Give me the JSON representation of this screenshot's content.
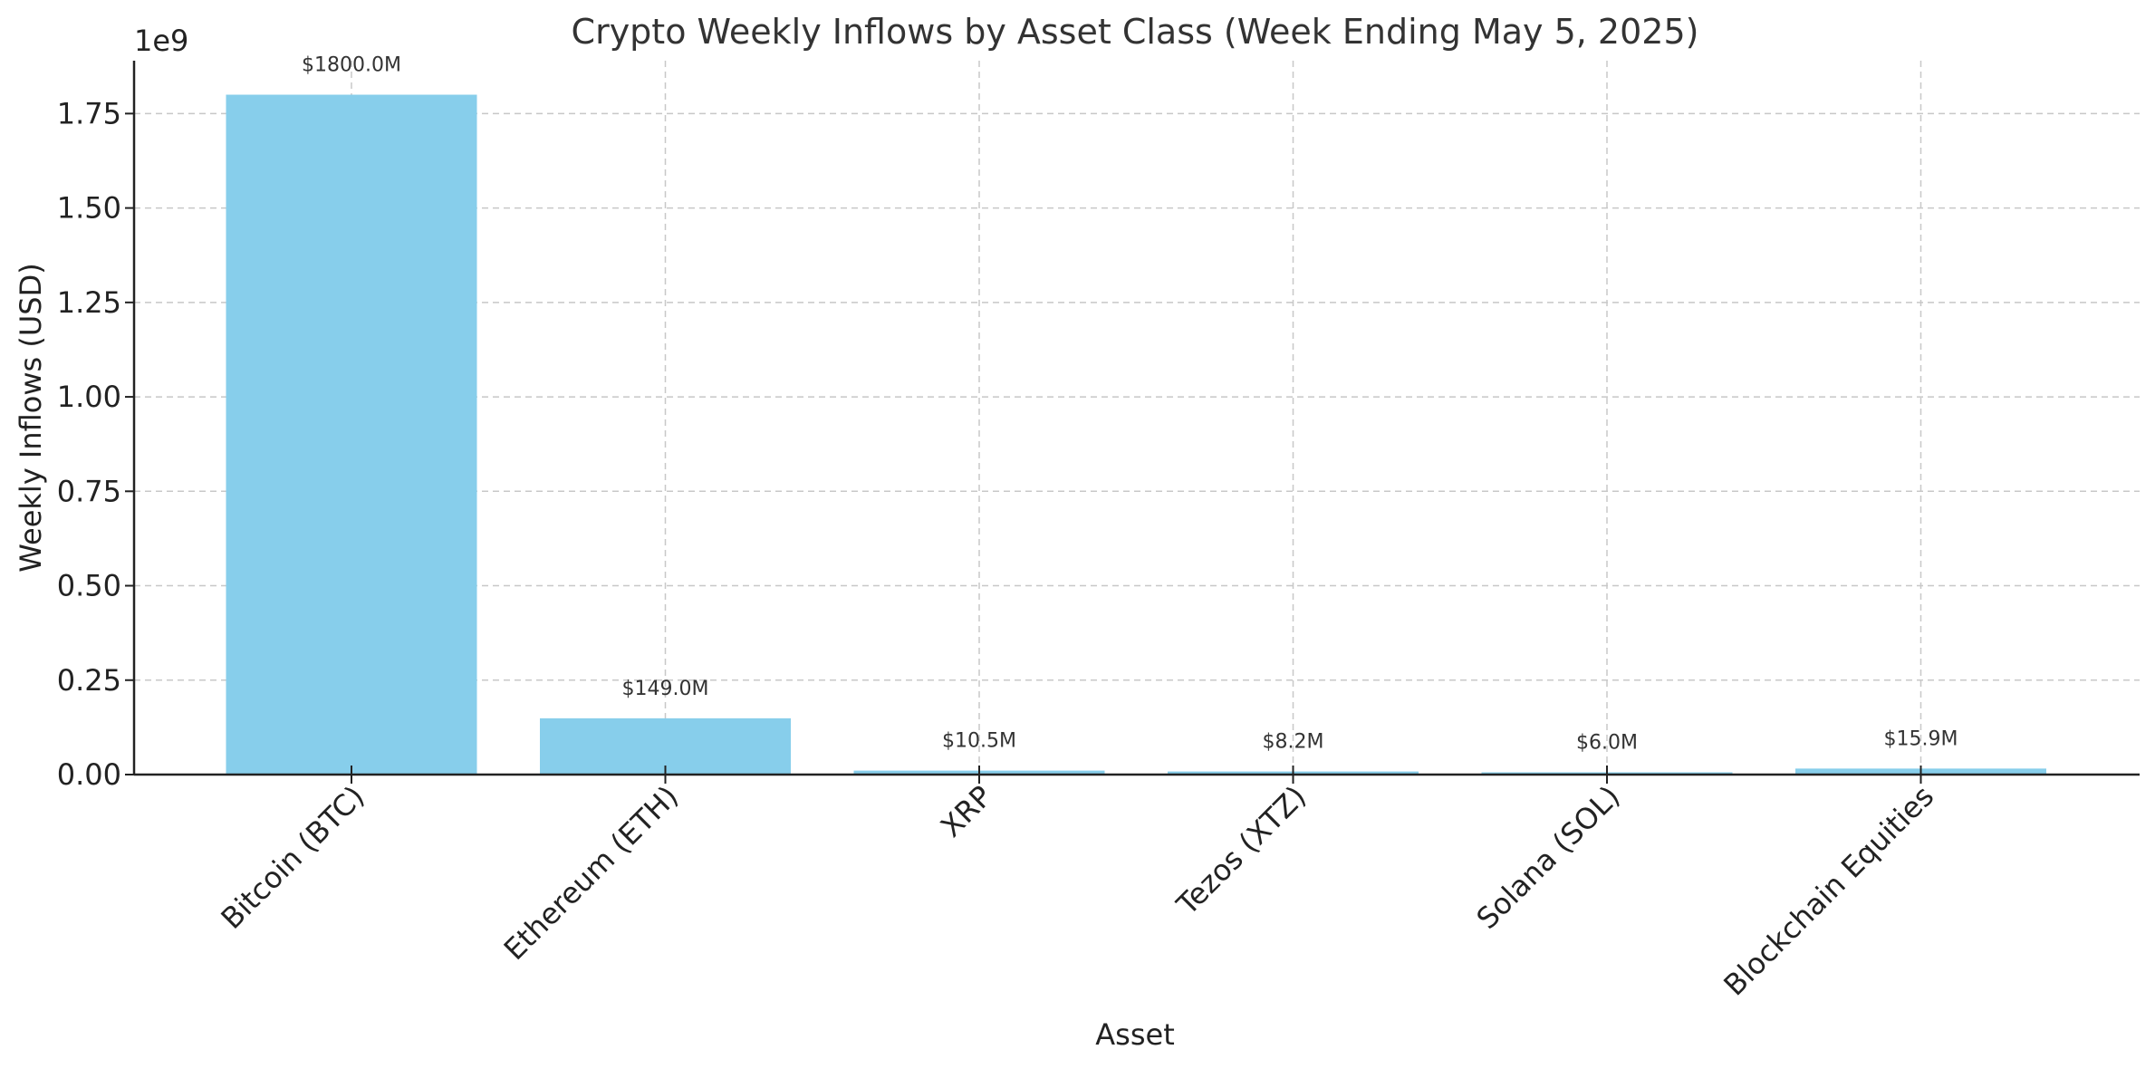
{
  "chart_data": {
    "type": "bar",
    "title": "Crypto Weekly Inflows by Asset Class (Week Ending May 5, 2025)",
    "xlabel": "Asset",
    "ylabel": "Weekly Inflows (USD)",
    "y_offset_label": "1e9",
    "categories": [
      "Bitcoin (BTC)",
      "Ethereum (ETH)",
      "XRP",
      "Tezos (XTZ)",
      "Solana (SOL)",
      "Blockchain Equities"
    ],
    "values": [
      1800000000,
      149000000,
      10500000,
      8200000,
      6000000,
      15900000
    ],
    "data_labels": [
      "$1800.0M",
      "$149.0M",
      "$10.5M",
      "$8.2M",
      "$6.0M",
      "$15.9M"
    ],
    "yticks": [
      0,
      0.25,
      0.5,
      0.75,
      1.0,
      1.25,
      1.5,
      1.75
    ],
    "ytick_labels": [
      "0.00",
      "0.25",
      "0.50",
      "0.75",
      "1.00",
      "1.25",
      "1.50",
      "1.75"
    ],
    "ylim": [
      0,
      1890000000
    ],
    "grid": true,
    "bar_color": "#87ceeb"
  }
}
